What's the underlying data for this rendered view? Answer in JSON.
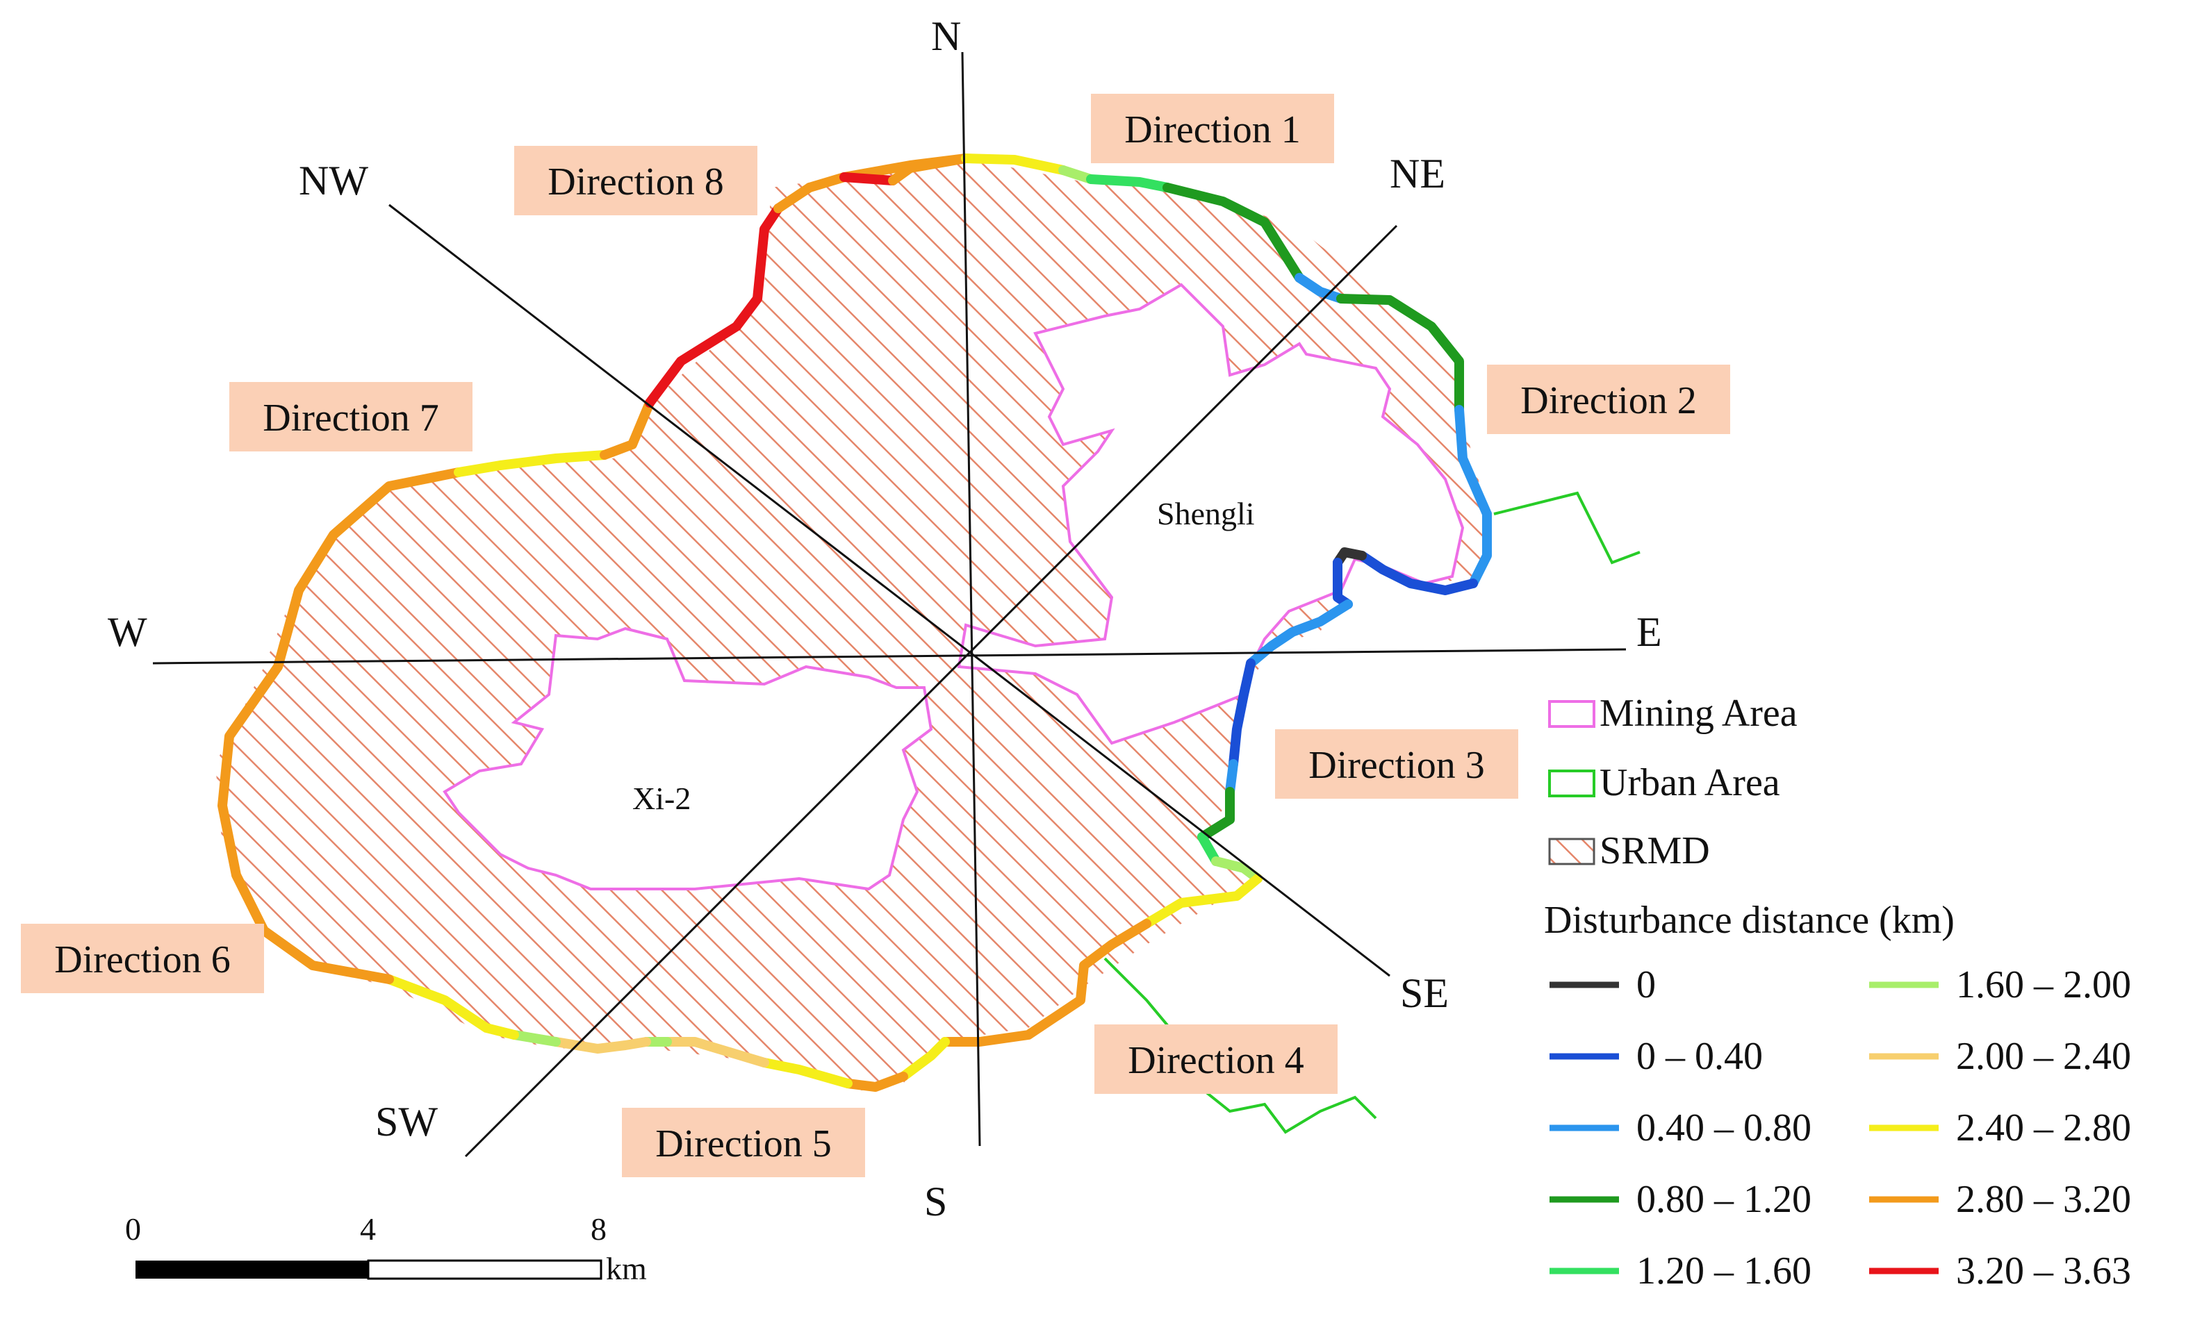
{
  "compass": {
    "N": "N",
    "NE": "NE",
    "E": "E",
    "SE": "SE",
    "S": "S",
    "SW": "SW",
    "W": "W",
    "NW": "NW"
  },
  "directions": [
    "Direction 1",
    "Direction 2",
    "Direction 3",
    "Direction 4",
    "Direction 5",
    "Direction 6",
    "Direction 7",
    "Direction 8"
  ],
  "places": {
    "shengli": "Shengli",
    "xi2": "Xi-2"
  },
  "legend": {
    "mining_area": "Mining Area",
    "urban_area": "Urban Area",
    "srmd": "SRMD",
    "distance_title": "Disturbance distance (km)",
    "ranges": [
      {
        "label": "0",
        "color": "#333333"
      },
      {
        "label": "0 – 0.40",
        "color": "#1a4fd6"
      },
      {
        "label": "0.40 – 0.80",
        "color": "#2b95ee"
      },
      {
        "label": "0.80 – 1.20",
        "color": "#1f9a1f"
      },
      {
        "label": "1.20 – 1.60",
        "color": "#33e060"
      },
      {
        "label": "1.60 – 2.00",
        "color": "#a8ee6a"
      },
      {
        "label": "2.00 – 2.40",
        "color": "#f7cf6e"
      },
      {
        "label": "2.40 – 2.80",
        "color": "#f5ee1a"
      },
      {
        "label": "2.80 – 3.20",
        "color": "#f39a1b"
      },
      {
        "label": "3.20 – 3.63",
        "color": "#e8141a"
      }
    ]
  },
  "colors": {
    "mining": "#ee6ee6",
    "urban": "#27cc27",
    "hatch": "#e5866a",
    "dir_box": "#fbd0b6"
  },
  "scale": {
    "ticks": [
      "0",
      "4",
      "8"
    ],
    "unit": "km"
  }
}
